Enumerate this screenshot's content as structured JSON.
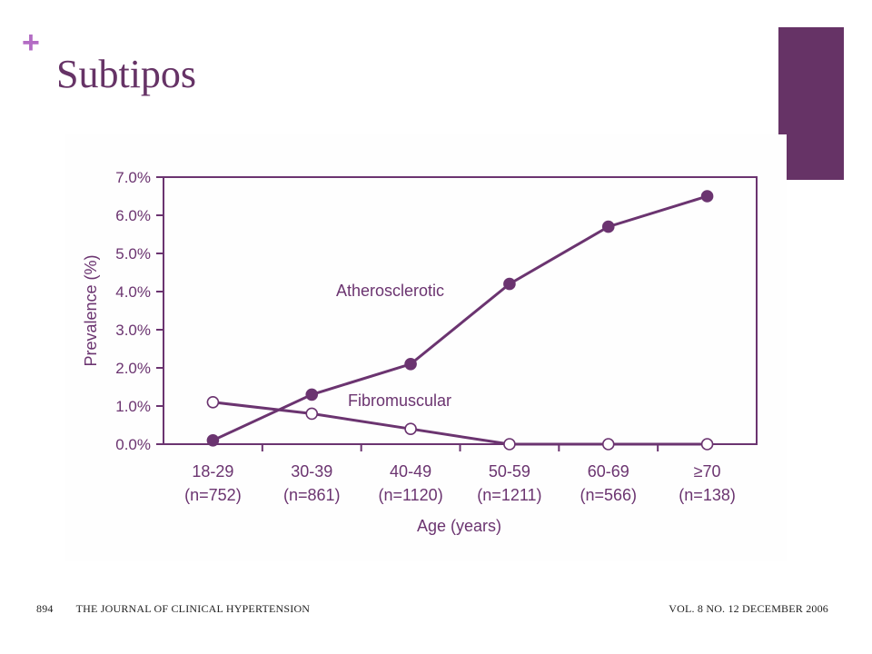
{
  "slide": {
    "plus_mark": "+",
    "title": "Subtipos",
    "accent_color": "#663366",
    "plus_color": "#b36cc4"
  },
  "footer": {
    "page_number": "894",
    "journal": "THE JOURNAL OF CLINICAL HYPERTENSION",
    "issue": "VOL. 8  NO. 12  DECEMBER 2006"
  },
  "chart_data": {
    "type": "line",
    "title": "",
    "xlabel": "Age (years)",
    "ylabel": "Prevalence (%)",
    "categories": [
      "18-29",
      "30-39",
      "40-49",
      "50-59",
      "60-69",
      "≥70"
    ],
    "category_sublabels": [
      "(n=752)",
      "(n=861)",
      "(n=1120)",
      "(n=1211)",
      "(n=566)",
      "(n=138)"
    ],
    "y_ticks": [
      "0.0%",
      "1.0%",
      "2.0%",
      "3.0%",
      "4.0%",
      "5.0%",
      "6.0%",
      "7.0%"
    ],
    "ylim": [
      0,
      7
    ],
    "grid": false,
    "legend": "inline labels",
    "color": "#6b3470",
    "series": [
      {
        "name": "Atherosclerotic",
        "marker": "filled",
        "values": [
          0.1,
          1.3,
          2.1,
          4.2,
          5.7,
          6.5
        ]
      },
      {
        "name": "Fibromuscular",
        "marker": "open",
        "values": [
          1.1,
          0.8,
          0.4,
          0.0,
          0.0,
          0.0
        ]
      }
    ]
  }
}
